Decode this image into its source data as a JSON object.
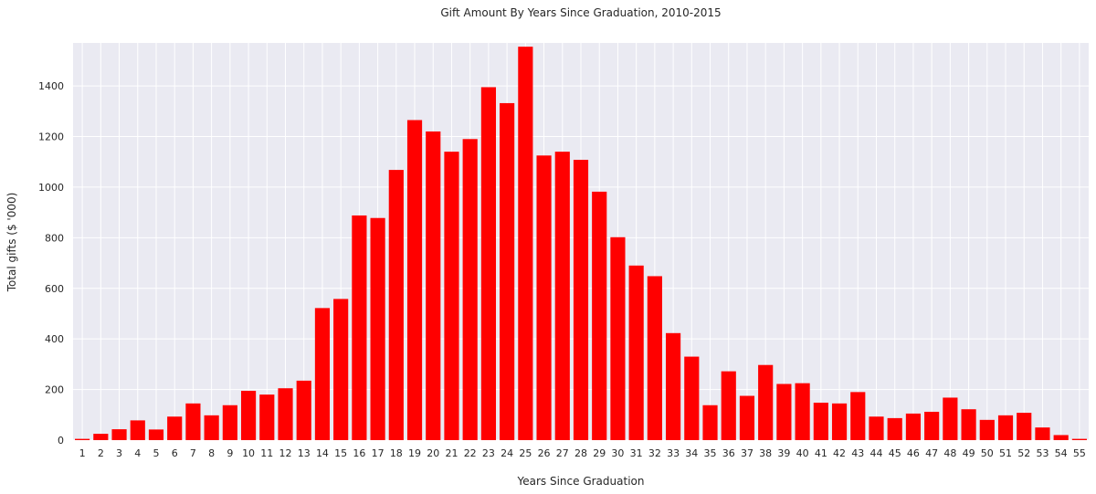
{
  "chart_data": {
    "type": "bar",
    "title": "Gift Amount By Years Since Graduation, 2010-2015",
    "xlabel": "Years Since Graduation",
    "ylabel": "Total gifts ($ '000)",
    "ylim": [
      0,
      1570
    ],
    "yticks": [
      0,
      200,
      400,
      600,
      800,
      1000,
      1200,
      1400
    ],
    "grid": true,
    "bar_color": "#ff0000",
    "background_color": "#eaeaf2",
    "categories": [
      "1",
      "2",
      "3",
      "4",
      "5",
      "6",
      "7",
      "8",
      "9",
      "10",
      "11",
      "12",
      "13",
      "14",
      "15",
      "16",
      "17",
      "18",
      "19",
      "20",
      "21",
      "22",
      "23",
      "24",
      "25",
      "26",
      "27",
      "28",
      "29",
      "30",
      "31",
      "32",
      "33",
      "34",
      "35",
      "36",
      "37",
      "38",
      "39",
      "40",
      "41",
      "42",
      "43",
      "44",
      "45",
      "46",
      "47",
      "48",
      "49",
      "50",
      "51",
      "52",
      "53",
      "54",
      "55"
    ],
    "values": [
      5,
      25,
      43,
      78,
      42,
      93,
      145,
      98,
      138,
      195,
      180,
      205,
      235,
      522,
      558,
      888,
      878,
      1068,
      1265,
      1220,
      1140,
      1190,
      1395,
      1332,
      1555,
      1125,
      1140,
      1108,
      982,
      802,
      690,
      648,
      423,
      330,
      138,
      272,
      175,
      297,
      222,
      225,
      148,
      145,
      190,
      93,
      87,
      105,
      112,
      168,
      122,
      80,
      98,
      108,
      50,
      20,
      5
    ]
  }
}
